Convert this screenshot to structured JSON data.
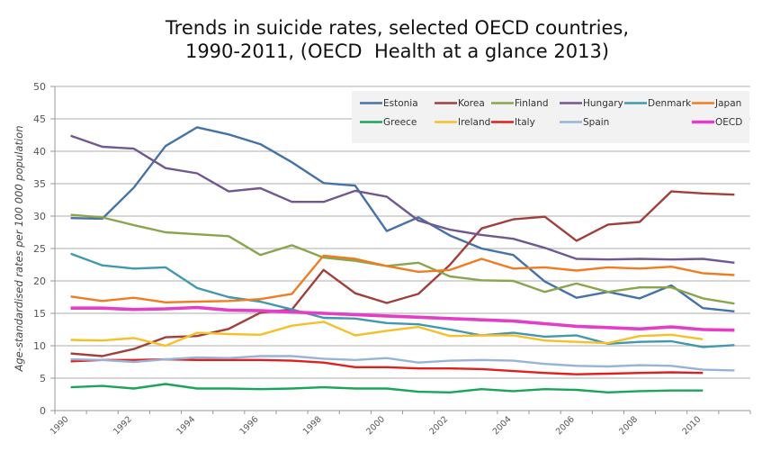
{
  "chart_data": {
    "type": "line",
    "title_lines": [
      "Trends in suicide rates, selected OECD countries,",
      "1990-2011, (OECD  Health at a glance 2013)"
    ],
    "xlabel": "",
    "ylabel": "Age-standardised rates per 100 000 population",
    "ylim": [
      0,
      50
    ],
    "yticks": [
      0,
      5,
      10,
      15,
      20,
      25,
      30,
      35,
      40,
      45,
      50
    ],
    "grid": true,
    "legend_position": "top-right",
    "x": [
      1990,
      1991,
      1992,
      1993,
      1994,
      1995,
      1996,
      1997,
      1998,
      1999,
      2000,
      2001,
      2002,
      2003,
      2004,
      2005,
      2006,
      2007,
      2008,
      2009,
      2010,
      2011
    ],
    "xtick_labels": [
      "1990",
      "",
      "1992",
      "",
      "1994",
      "",
      "1996",
      "",
      "1998",
      "",
      "2000",
      "",
      "2002",
      "",
      "2004",
      "",
      "2006",
      "",
      "2008",
      "",
      "2010",
      ""
    ],
    "series": [
      {
        "name": "Estonia",
        "color": "#4572a7",
        "values": [
          29.7,
          29.6,
          34.4,
          40.8,
          43.7,
          42.6,
          41.1,
          38.3,
          35.1,
          34.7,
          27.7,
          29.8,
          27.0,
          25.0,
          24.0,
          19.9,
          17.4,
          18.3,
          17.3,
          19.3,
          15.8,
          15.3
        ]
      },
      {
        "name": "Korea",
        "color": "#a0403c",
        "values": [
          8.8,
          8.4,
          9.5,
          11.3,
          11.5,
          12.6,
          15.1,
          15.6,
          21.7,
          18.1,
          16.6,
          18.0,
          22.5,
          28.1,
          29.5,
          29.9,
          26.2,
          28.7,
          29.1,
          33.8,
          33.5,
          33.3
        ]
      },
      {
        "name": "Finland",
        "color": "#89a54e",
        "values": [
          30.2,
          29.8,
          28.6,
          27.5,
          27.2,
          26.9,
          24.0,
          25.5,
          23.6,
          23.1,
          22.3,
          22.8,
          20.7,
          20.1,
          20.0,
          18.3,
          19.6,
          18.3,
          19.0,
          19.0,
          17.3,
          16.5
        ]
      },
      {
        "name": "Hungary",
        "color": "#71588f",
        "values": [
          42.4,
          40.7,
          40.4,
          37.4,
          36.6,
          33.8,
          34.3,
          32.2,
          32.2,
          33.9,
          33.0,
          29.3,
          27.9,
          27.1,
          26.5,
          25.1,
          23.4,
          23.3,
          23.4,
          23.3,
          23.4,
          22.8
        ]
      },
      {
        "name": "Denmark",
        "color": "#4198af",
        "values": [
          24.2,
          22.4,
          21.9,
          22.1,
          18.9,
          17.5,
          16.8,
          15.6,
          14.3,
          14.2,
          13.5,
          13.3,
          12.5,
          11.6,
          12.0,
          11.4,
          11.6,
          10.3,
          10.6,
          10.7,
          9.8,
          10.1
        ]
      },
      {
        "name": "Japan",
        "color": "#f07c22",
        "values": [
          17.6,
          16.9,
          17.4,
          16.7,
          16.8,
          16.9,
          17.2,
          18.0,
          23.9,
          23.4,
          22.3,
          21.4,
          21.7,
          23.4,
          21.9,
          22.1,
          21.6,
          22.1,
          21.9,
          22.2,
          21.2,
          20.9
        ]
      },
      {
        "name": "Greece",
        "color": "#1aa55a",
        "values": [
          3.6,
          3.8,
          3.4,
          4.1,
          3.4,
          3.4,
          3.3,
          3.4,
          3.6,
          3.4,
          3.4,
          2.9,
          2.8,
          3.3,
          3.0,
          3.3,
          3.2,
          2.8,
          3.0,
          3.1,
          3.1,
          null
        ]
      },
      {
        "name": "Ireland",
        "color": "#f5c02a",
        "values": [
          10.9,
          10.8,
          11.2,
          10.0,
          12.0,
          11.8,
          11.7,
          13.1,
          13.7,
          11.6,
          12.3,
          12.9,
          11.5,
          11.6,
          11.6,
          10.8,
          10.6,
          10.4,
          11.5,
          11.7,
          11.0,
          null
        ]
      },
      {
        "name": "Italy",
        "color": "#e0201e",
        "values": [
          7.6,
          7.8,
          7.8,
          7.9,
          7.8,
          7.8,
          7.8,
          7.7,
          7.4,
          6.7,
          6.7,
          6.5,
          6.5,
          6.4,
          6.1,
          5.8,
          5.6,
          5.7,
          5.8,
          5.9,
          5.8,
          null
        ]
      },
      {
        "name": "Spain",
        "color": "#98b3d8",
        "values": [
          7.9,
          7.8,
          7.5,
          7.9,
          8.2,
          8.1,
          8.4,
          8.4,
          8.0,
          7.8,
          8.1,
          7.4,
          7.7,
          7.8,
          7.7,
          7.2,
          6.9,
          6.8,
          7.0,
          6.9,
          6.3,
          6.2
        ]
      },
      {
        "name": "OECD",
        "color": "#e33ec8",
        "values": [
          15.8,
          15.8,
          15.6,
          15.7,
          15.9,
          15.5,
          15.4,
          15.2,
          15.0,
          14.8,
          14.6,
          14.4,
          14.2,
          14.0,
          13.8,
          13.4,
          13.0,
          12.8,
          12.6,
          12.9,
          12.5,
          12.4
        ]
      }
    ]
  }
}
